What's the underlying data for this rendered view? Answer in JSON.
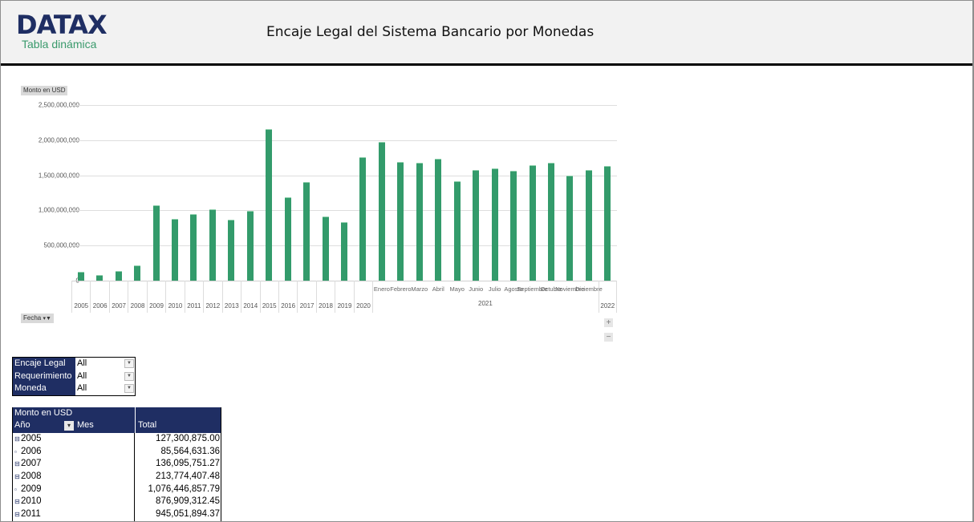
{
  "header": {
    "logo": "DATAX",
    "subtitle": "Tabla dinámica",
    "title": "Encaje Legal del Sistema Bancario por Monedas"
  },
  "chart": {
    "measure_button": "Monto en USD",
    "fecha_button": "Fecha",
    "filter_icon": "funnel-icon",
    "zoom_in_label": "+",
    "zoom_out_label": "−",
    "bar_color": "#339b6b"
  },
  "chart_data": {
    "type": "bar",
    "title": "Encaje Legal del Sistema Bancario por Monedas",
    "ylabel": "Monto en USD",
    "xlabel": "Fecha",
    "ylim": [
      0,
      2500000000
    ],
    "yticks": [
      "0",
      "500,000,000",
      "1,000,000,000",
      "1,500,000,000",
      "2,000,000,000",
      "2,500,000,000"
    ],
    "grid": true,
    "legend": "none",
    "categories": [
      "2005",
      "2006",
      "2007",
      "2008",
      "2009",
      "2010",
      "2011",
      "2012",
      "2013",
      "2014",
      "2015",
      "2016",
      "2017",
      "2018",
      "2019",
      "2020",
      "2021 Enero",
      "2021 Febrero",
      "2021 Marzo",
      "2021 Abril",
      "2021 Mayo",
      "2021 Junio",
      "2021 Julio",
      "2021 Agosto",
      "2021 Septiembre",
      "2021 Octubre",
      "2021 Noviembre",
      "2021 Diciembre",
      "2022"
    ],
    "series": [
      {
        "name": "Monto en USD",
        "values": [
          127300875.0,
          85564631.36,
          136095751.27,
          213774407.48,
          1076446857.79,
          876909312.45,
          945051894.37,
          1020000000,
          870000000,
          990000000,
          2160000000,
          1190000000,
          1400000000,
          910000000,
          830000000,
          1760000000,
          1970000000,
          1690000000,
          1680000000,
          1730000000,
          1420000000,
          1570000000,
          1600000000,
          1560000000,
          1640000000,
          1680000000,
          1500000000,
          1580000000,
          1630000000
        ]
      }
    ],
    "year_labels": [
      "2005",
      "2006",
      "2007",
      "2008",
      "2009",
      "2010",
      "2011",
      "2012",
      "2013",
      "2014",
      "2015",
      "2016",
      "2017",
      "2018",
      "2019",
      "2020"
    ],
    "month_labels_2021": [
      "Enero",
      "Febrero",
      "Marzo",
      "Abril",
      "Mayo",
      "Junio",
      "Julio",
      "Agosto",
      "Septiembre",
      "Octubre",
      "Noviembre",
      "Diciembre"
    ],
    "group_label_2021": "2021",
    "group_label_2022": "2022"
  },
  "slicers": [
    {
      "label": "Encaje Legal",
      "value": "All"
    },
    {
      "label": "Requerimiento",
      "value": "All"
    },
    {
      "label": "Moneda",
      "value": "All"
    }
  ],
  "pivot": {
    "measure": "Monto en USD",
    "col_year": "Año",
    "col_month": "Mes",
    "col_total": "Total",
    "rows": [
      {
        "year": "2005",
        "total": "127,300,875.00"
      },
      {
        "year": "2006",
        "total": "85,564,631.36"
      },
      {
        "year": "2007",
        "total": "136,095,751.27"
      },
      {
        "year": "2008",
        "total": "213,774,407.48"
      },
      {
        "year": "2009",
        "total": "1,076,446,857.79"
      },
      {
        "year": "2010",
        "total": "876,909,312.45"
      },
      {
        "year": "2011",
        "total": "945,051,894.37"
      }
    ]
  }
}
